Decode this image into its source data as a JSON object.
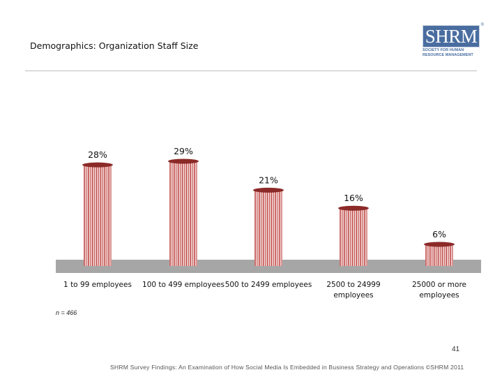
{
  "slide": {
    "title": "Demographics: Organization Staff Size",
    "sample_note": "n = 466",
    "page_number": "41",
    "footer": "SHRM Survey Findings: An Examination of How Social Media Is Embedded in Business Strategy and Operations ©SHRM 2011"
  },
  "logo": {
    "name": "SHRM",
    "registered": "®",
    "tagline_line1": "SOCIETY FOR HUMAN",
    "tagline_line2": "RESOURCE MANAGEMENT"
  },
  "colors": {
    "bar": "#c0504d",
    "bar_top": "#8b2a28",
    "floor": "#a6a6a6"
  },
  "chart_data": {
    "type": "bar",
    "title": "Demographics: Organization Staff Size",
    "categories": [
      [
        "1 to 99 employees"
      ],
      [
        "100 to 499 employees"
      ],
      [
        "500 to 2499 employees"
      ],
      [
        "2500 to 24999",
        "employees"
      ],
      [
        "25000 or more",
        "employees"
      ]
    ],
    "values": [
      28,
      29,
      21,
      16,
      6
    ],
    "data_labels": [
      "28%",
      "29%",
      "21%",
      "16%",
      "6%"
    ],
    "ylim": [
      0,
      30
    ],
    "xlabel": "",
    "ylabel": "",
    "grid": false,
    "legend": "none"
  }
}
